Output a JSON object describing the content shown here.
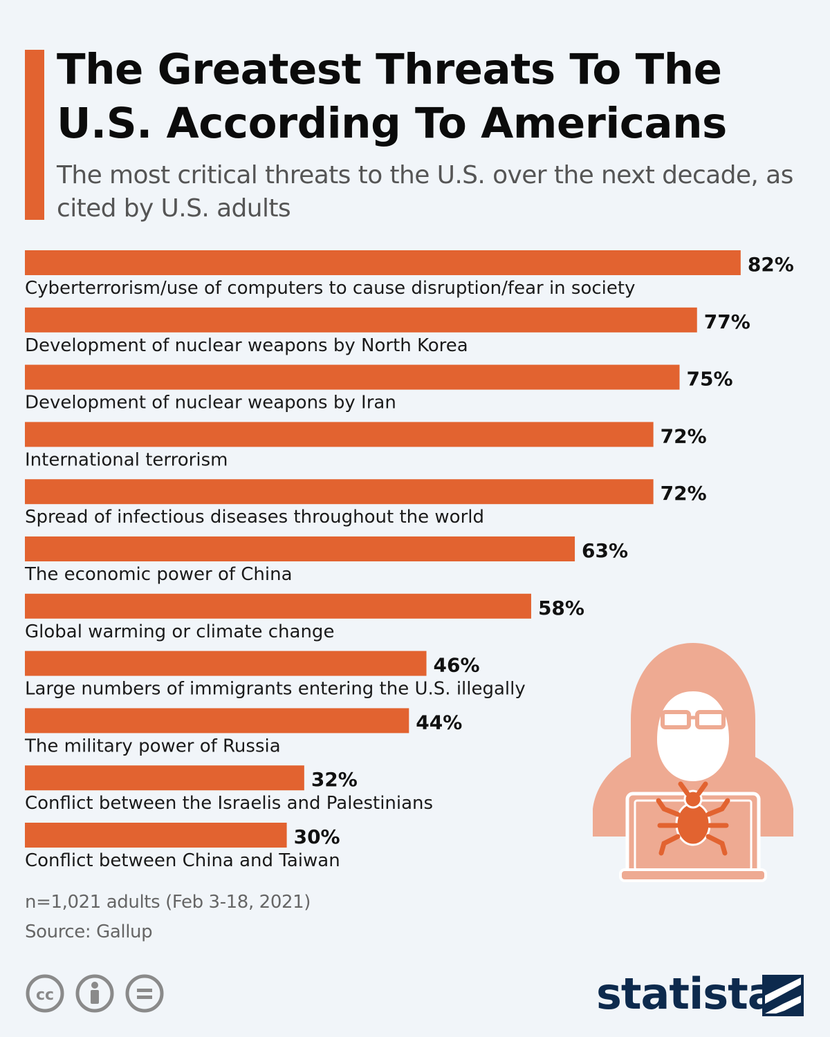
{
  "header": {
    "title": "The Greatest Threats To The U.S. According To Americans",
    "subtitle": "The most critical threats to the U.S. over the next decade, as cited by U.S. adults"
  },
  "chart_data": {
    "type": "bar",
    "orientation": "horizontal",
    "title": "The Greatest Threats To The U.S. According To Americans",
    "subtitle": "The most critical threats to the U.S. over the next decade, as cited by U.S. adults",
    "categories": [
      "Cyberterrorism/use of computers to cause disruption/fear in society",
      "Development of nuclear weapons by North Korea",
      "Development of nuclear weapons by Iran",
      "International terrorism",
      "Spread of infectious diseases throughout the world",
      "The economic power of China",
      "Global warming or climate change",
      "Large numbers of immigrants entering the U.S. illegally",
      "The military power of Russia",
      "Conflict between the Israelis and Palestinians",
      "Conflict between China and Taiwan"
    ],
    "values": [
      82,
      77,
      75,
      72,
      72,
      63,
      58,
      46,
      44,
      32,
      30
    ],
    "value_suffix": "%",
    "xlim": [
      0,
      100
    ],
    "grid": false,
    "legend": "none",
    "bar_color": "#e26330"
  },
  "footer": {
    "sample": "n=1,021 adults (Feb 3-18, 2021)",
    "source": "Source: Gallup",
    "brand": "statista"
  },
  "icons": {
    "license": [
      "cc-icon",
      "attribution-icon",
      "no-derivatives-icon"
    ],
    "illustration": "hacker-icon",
    "logo": "statista-logo-icon"
  },
  "colors": {
    "accent": "#e26330",
    "illustration": "#eeaa92",
    "brand": "#0d2a4d",
    "background": "#f1f5f9"
  }
}
